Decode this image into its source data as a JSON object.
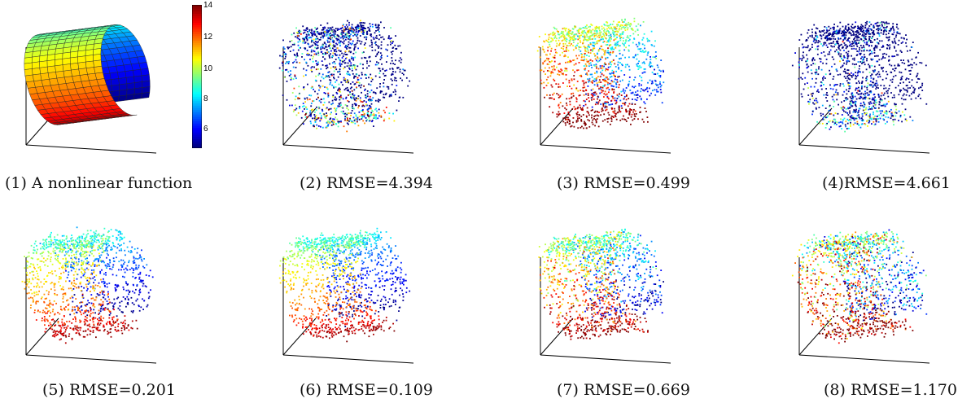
{
  "captions": [
    "(1) A nonlinear function",
    "(2) RMSE=4.394",
    "(3) RMSE=0.499",
    "(4)RMSE=4.661",
    "(5) RMSE=0.201",
    "(6) RMSE=0.109",
    "(7) RMSE=0.669",
    "(8) RMSE=1.170"
  ],
  "colorbar": {
    "ticks": [
      "14",
      "12",
      "10",
      "8",
      "6"
    ],
    "range": [
      4.7,
      14.2
    ],
    "colormap": "jet"
  },
  "panels": [
    {
      "kind": "surface"
    },
    {
      "kind": "scatter",
      "noise": 0.35,
      "bias": -0.5
    },
    {
      "kind": "scatter",
      "noise": 0.08,
      "bias": 0.12
    },
    {
      "kind": "scatter",
      "noise": 0.3,
      "bias": -0.7
    },
    {
      "kind": "scatter",
      "noise": 0.04,
      "bias": 0.0
    },
    {
      "kind": "scatter",
      "noise": 0.02,
      "bias": 0.0
    },
    {
      "kind": "scatter",
      "noise": 0.1,
      "bias": 0.05
    },
    {
      "kind": "scatter",
      "noise": 0.18,
      "bias": 0.08
    }
  ]
}
